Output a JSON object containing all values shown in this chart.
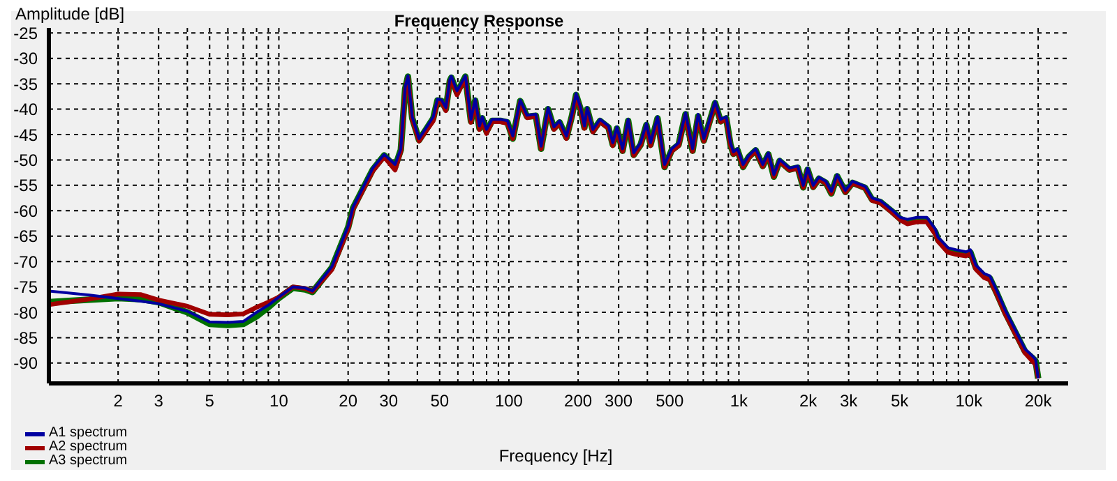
{
  "chart_data": {
    "type": "line",
    "title": "Frequency Response",
    "xlabel": "Frequency [Hz]",
    "ylabel": "Amplitude [dB]",
    "log": "x",
    "grid": true,
    "legend": "bottom left",
    "marker": "none",
    "line_style": "solid",
    "xlim": [
      1,
      27000
    ],
    "ylim": [
      -94,
      -24
    ],
    "xticks": [
      2,
      3,
      {
        "value": 4,
        "label": null
      },
      5,
      {
        "value": 6,
        "label": null
      },
      {
        "value": 7,
        "label": null
      },
      {
        "value": 8,
        "label": null
      },
      {
        "value": 9,
        "label": null
      },
      10,
      20,
      30,
      {
        "value": 40,
        "label": null
      },
      50,
      {
        "value": 60,
        "label": null
      },
      {
        "value": 70,
        "label": null
      },
      {
        "value": 80,
        "label": null
      },
      {
        "value": 90,
        "label": null
      },
      100,
      200,
      300,
      {
        "value": 400,
        "label": null
      },
      500,
      {
        "value": 600,
        "label": null
      },
      {
        "value": 700,
        "label": null
      },
      {
        "value": 800,
        "label": null
      },
      {
        "value": 900,
        "label": null
      },
      {
        "value": 1000,
        "label": "1k"
      },
      {
        "value": 2000,
        "label": "2k"
      },
      {
        "value": 3000,
        "label": "3k"
      },
      {
        "value": 4000,
        "label": null
      },
      {
        "value": 5000,
        "label": "5k"
      },
      {
        "value": 6000,
        "label": null
      },
      {
        "value": 7000,
        "label": null
      },
      {
        "value": 8000,
        "label": null
      },
      {
        "value": 9000,
        "label": null
      },
      {
        "value": 10000,
        "label": "10k"
      },
      {
        "value": 20000,
        "label": "20k"
      }
    ],
    "yticks": [
      -25,
      -30,
      -35,
      -40,
      -45,
      -50,
      -55,
      -60,
      -65,
      -70,
      -75,
      -80,
      -85,
      -90
    ],
    "x": [
      1,
      1.5,
      2,
      2.5,
      3,
      4,
      5,
      6,
      7,
      8,
      9,
      10,
      11.5,
      13,
      14,
      17,
      20,
      21,
      25.6,
      28.7,
      32,
      33.9,
      35.4,
      36.4,
      38,
      40.7,
      46.9,
      48.9,
      51,
      53.2,
      55.4,
      56.2,
      59.5,
      64.7,
      68.4,
      71.4,
      74.5,
      76.6,
      79.9,
      84.5,
      91.9,
      98.6,
      104,
      112,
      120,
      131,
      138,
      148,
      157,
      166,
      178,
      188,
      196,
      205,
      213,
      219,
      232,
      249,
      271,
      283,
      295,
      312,
      330,
      349,
      374,
      396,
      413,
      443,
      475,
      510,
      547,
      586,
      629,
      665,
      704,
      788,
      833,
      881,
      919,
      946,
      987,
      1043,
      1104,
      1183,
      1270,
      1343,
      1419,
      1503,
      1659,
      1803,
      1905,
      1990,
      2104,
      2228,
      2388,
      2524,
      2673,
      2904,
      3118,
      3540,
      3794,
      4127,
      4620,
      5025,
      5395,
      5943,
      6561,
      7140,
      7341,
      8106,
      8817,
      9727,
      10150,
      10720,
      11670,
      12330,
      13240,
      14410,
      15890,
      17530,
      18800,
      19500,
      20000
    ],
    "series": [
      {
        "name": "A1 spectrum",
        "color": "#0000a0",
        "values": [
          -75.8,
          -76.6,
          -77.3,
          -77.8,
          -78.3,
          -79.8,
          -81.9,
          -82,
          -81.8,
          -80,
          -78.6,
          -77,
          -75,
          -75.2,
          -75.8,
          -71,
          -63,
          -59.3,
          -51.6,
          -48.9,
          -50.9,
          -47.8,
          -35.7,
          -33.4,
          -41.5,
          -45.8,
          -41.5,
          -38,
          -38.2,
          -39.7,
          -34.1,
          -33.5,
          -36.4,
          -33.4,
          -42,
          -38,
          -43.3,
          -41.5,
          -44,
          -42,
          -42,
          -42.3,
          -45.3,
          -38.2,
          -41.2,
          -41,
          -47.3,
          -39.7,
          -43.5,
          -42.3,
          -45.3,
          -41,
          -36.9,
          -39.7,
          -43.3,
          -39.7,
          -44,
          -42,
          -43.3,
          -46.6,
          -43.5,
          -47.8,
          -42,
          -48.6,
          -46.6,
          -42.8,
          -46.6,
          -41.5,
          -50.9,
          -47.8,
          -46.6,
          -40.7,
          -47.8,
          -41,
          -45.8,
          -38.5,
          -42,
          -41.5,
          -46.6,
          -48.4,
          -47.8,
          -50.9,
          -49.1,
          -47.8,
          -50.9,
          -48.6,
          -52.9,
          -49.9,
          -51.6,
          -51.2,
          -55,
          -51.6,
          -55,
          -53.4,
          -54.2,
          -56.2,
          -52.9,
          -56,
          -54.2,
          -55.2,
          -57.5,
          -58,
          -59.8,
          -61.3,
          -61.7,
          -61.3,
          -61.3,
          -63.6,
          -65.2,
          -67.3,
          -67.7,
          -68.1,
          -67.7,
          -70.7,
          -72.4,
          -72.8,
          -75.8,
          -79.6,
          -83.4,
          -87.2,
          -88.5,
          -89.3,
          -93
        ]
      },
      {
        "name": "A2 spectrum",
        "color": "#a00000",
        "values": [
          -78.5,
          -77.4,
          -76.4,
          -76.5,
          -77.6,
          -78.8,
          -80.4,
          -80.5,
          -80.3,
          -79,
          -78,
          -77,
          -75,
          -75.3,
          -75.9,
          -71.6,
          -63.6,
          -59.8,
          -52.2,
          -49.4,
          -52,
          -48.3,
          -36.2,
          -33.8,
          -42,
          -46.3,
          -42.3,
          -38.6,
          -38.6,
          -40.3,
          -34.6,
          -34,
          -37.2,
          -33.8,
          -42.6,
          -38.5,
          -44,
          -42,
          -44.8,
          -42.5,
          -42.5,
          -42.8,
          -45.8,
          -38.6,
          -41.7,
          -41.4,
          -47.8,
          -40.2,
          -44,
          -42.8,
          -45.8,
          -41.4,
          -37.4,
          -40.1,
          -43.8,
          -40.2,
          -44.5,
          -42.5,
          -43.8,
          -47.2,
          -44,
          -48.3,
          -42.5,
          -49.1,
          -47.1,
          -43.3,
          -47.2,
          -42,
          -51.4,
          -48.3,
          -47.2,
          -41.2,
          -48.3,
          -41.6,
          -46.3,
          -39,
          -42.5,
          -42,
          -47.1,
          -48.9,
          -48.3,
          -51.4,
          -49.6,
          -48.2,
          -51.3,
          -49,
          -53.3,
          -50.3,
          -52,
          -51.6,
          -55.4,
          -52,
          -55.4,
          -53.8,
          -54.6,
          -56.6,
          -53.3,
          -56.4,
          -54.6,
          -55.6,
          -58,
          -58.5,
          -60.3,
          -61.8,
          -62.6,
          -62.2,
          -62.2,
          -64.6,
          -66,
          -68.2,
          -68.6,
          -68.9,
          -68.5,
          -71.5,
          -73.2,
          -73.6,
          -76.6,
          -80.4,
          -84.2,
          -88,
          -89.5,
          -90.3,
          -93
        ]
      },
      {
        "name": "A3 spectrum",
        "color": "#007000",
        "values": [
          -78,
          -77.5,
          -77.2,
          -77.4,
          -78,
          -80,
          -82.3,
          -82.5,
          -82.3,
          -80.8,
          -79,
          -77.2,
          -75.2,
          -75.5,
          -76,
          -71.2,
          -63.3,
          -59.5,
          -51.9,
          -49.1,
          -51.4,
          -48,
          -36,
          -33.6,
          -41.8,
          -46.1,
          -41.8,
          -38.3,
          -38.4,
          -40,
          -34.4,
          -33.8,
          -36.8,
          -33.6,
          -42.4,
          -38.3,
          -43.8,
          -41.8,
          -44.4,
          -42.3,
          -42.3,
          -42.6,
          -45.8,
          -38.4,
          -41.5,
          -41.3,
          -47.8,
          -40,
          -43.8,
          -42.6,
          -45.6,
          -41.3,
          -37.2,
          -40,
          -43.6,
          -40,
          -44.3,
          -42.3,
          -43.6,
          -47,
          -43.8,
          -48.2,
          -42.3,
          -49,
          -47,
          -43.1,
          -47,
          -41.8,
          -51.4,
          -48.1,
          -47,
          -41,
          -48.2,
          -41.4,
          -46.2,
          -38.8,
          -42.4,
          -41.8,
          -47,
          -48.8,
          -48.1,
          -51.4,
          -49.4,
          -48.1,
          -51.2,
          -48.9,
          -53.3,
          -50.2,
          -51.9,
          -51.5,
          -55.4,
          -51.9,
          -55.3,
          -53.7,
          -54.5,
          -56.6,
          -53.2,
          -56.3,
          -54.5,
          -55.5,
          -57.8,
          -58.3,
          -60.1,
          -61.6,
          -62.2,
          -61.8,
          -61.8,
          -64.2,
          -65.7,
          -67.8,
          -68.2,
          -68.6,
          -68.2,
          -71.2,
          -72.9,
          -73.3,
          -76.3,
          -80.1,
          -83.9,
          -87.7,
          -88.9,
          -89.6,
          -93
        ]
      }
    ]
  }
}
